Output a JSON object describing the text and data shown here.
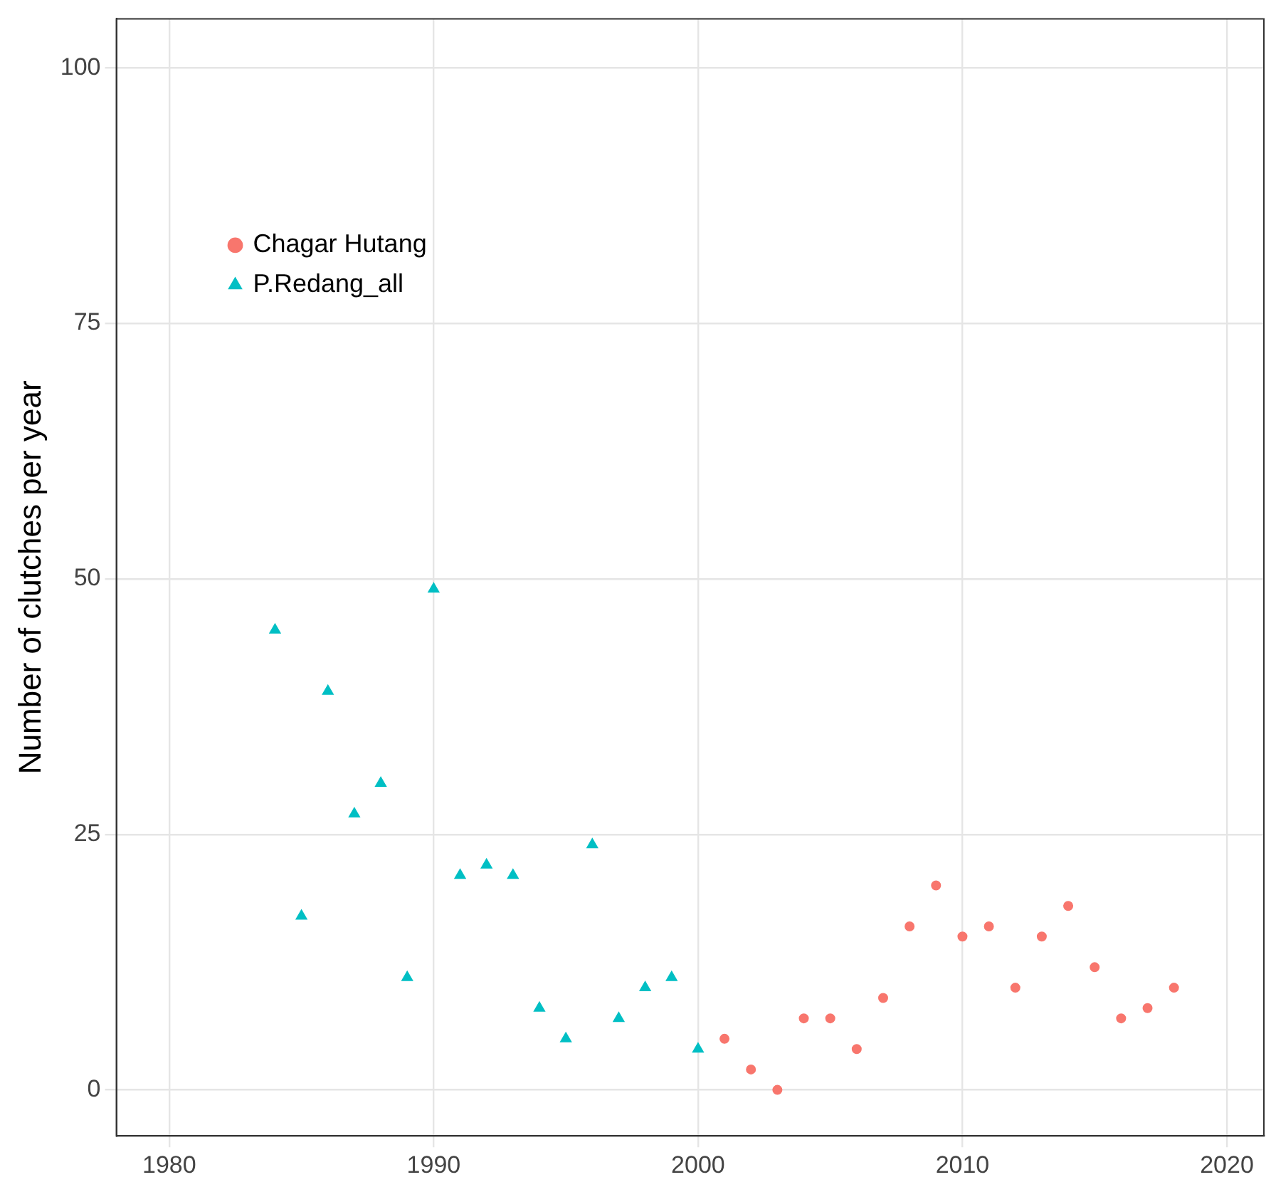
{
  "chart_data": {
    "type": "scatter",
    "ylabel": "Number of clutches per year",
    "xlim": [
      1978,
      2021.4
    ],
    "xticks": [
      1980,
      1990,
      2000,
      2010,
      2020
    ],
    "ylim": [
      -4.5,
      104.8
    ],
    "yticks": [
      0,
      25,
      50,
      75,
      100
    ],
    "grid": true,
    "legend": "top left",
    "series": [
      {
        "name": "Chagar Hutang",
        "color": "#f8766d",
        "marker": "circle",
        "x": [
          2001,
          2002,
          2003,
          2004,
          2005,
          2006,
          2007,
          2008,
          2009,
          2010,
          2011,
          2012,
          2013,
          2014,
          2015,
          2016,
          2017,
          2018
        ],
        "values": [
          5,
          2,
          0,
          7,
          7,
          4,
          9,
          16,
          20,
          15,
          16,
          10,
          15,
          18,
          12,
          7,
          8,
          10
        ]
      },
      {
        "name": "P.Redang_all",
        "color": "#00bfc4",
        "marker": "triangle",
        "x": [
          1984,
          1985,
          1986,
          1987,
          1988,
          1989,
          1990,
          1991,
          1992,
          1993,
          1994,
          1995,
          1996,
          1997,
          1998,
          1999,
          2000
        ],
        "values": [
          45,
          17,
          39,
          27,
          30,
          11,
          49,
          21,
          22,
          21,
          8,
          5,
          24,
          7,
          10,
          11,
          4
        ]
      }
    ]
  }
}
